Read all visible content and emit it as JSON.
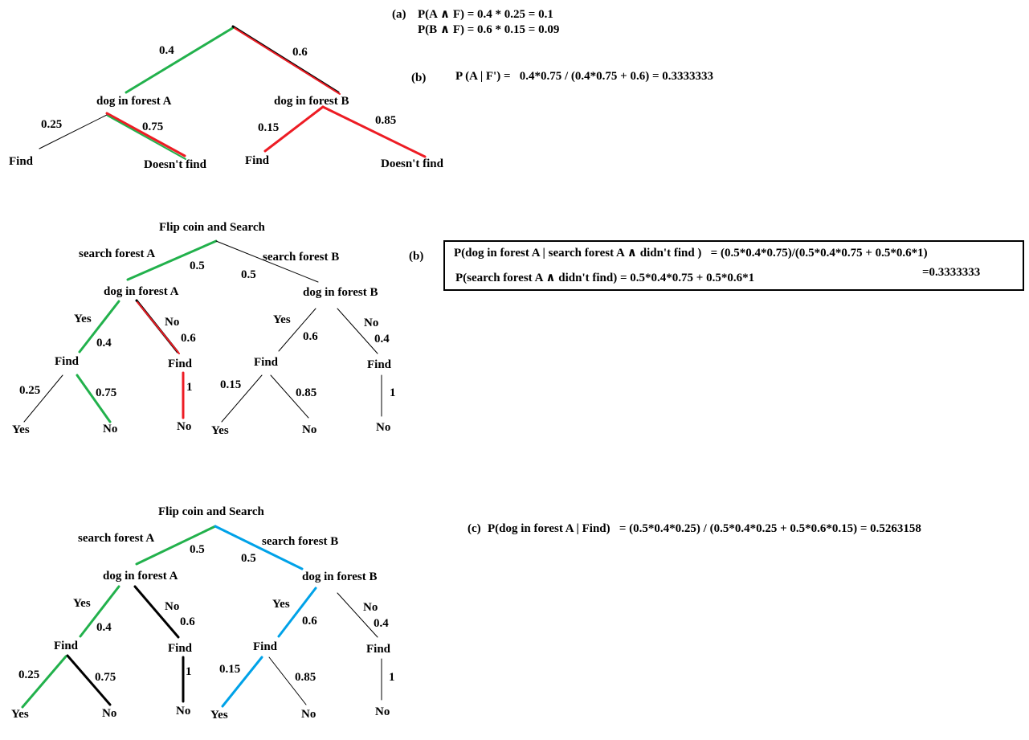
{
  "colors": {
    "green": "#22b14c",
    "red": "#ed1c24",
    "blue": "#00a2e8",
    "black": "#000000"
  },
  "formulas": {
    "a_label": "(a)",
    "a_line1": "P(A ∧ F) = 0.4 * 0.25 = 0.1",
    "a_line2": "P(B ∧ F) = 0.6 * 0.15 = 0.09",
    "b1_label": "(b)",
    "b1_text": "P (A | F') =   0.4*0.75 / (0.4*0.75 + 0.6) = 0.3333333",
    "b2_label": "(b)",
    "b2_line1": "P(dog in forest A | search forest A ∧ didn't find )   = (0.5*0.4*0.75)/(0.5*0.4*0.75 + 0.5*0.6*1)",
    "b2_result": "=0.3333333",
    "b2_line2": "P(search forest A ∧ didn't find) = 0.5*0.4*0.75 + 0.5*0.6*1",
    "c_label": "(c)",
    "c_text": "P(dog in forest A | Find)   = (0.5*0.4*0.25) / (0.5*0.4*0.25 + 0.5*0.6*0.15) = 0.5263158"
  },
  "tree1": {
    "p_a": "0.4",
    "p_b": "0.6",
    "node_a": "dog in forest A",
    "node_b": "dog in forest B",
    "a_find_p": "0.25",
    "a_notfind_p": "0.75",
    "a_find": "Find",
    "a_notfind": "Doesn't find",
    "b_find_p": "0.15",
    "b_notfind_p": "0.85",
    "b_find": "Find",
    "b_notfind": "Doesn't find"
  },
  "tree2": {
    "root": "Flip coin and Search",
    "search_a": "search forest A",
    "search_a_p": "0.5",
    "search_b": "search forest B",
    "search_b_p": "0.5",
    "node_a": "dog in forest A",
    "node_b": "dog in forest B",
    "a_yes": "Yes",
    "a_yes_p": "0.4",
    "a_no": "No",
    "a_no_p": "0.6",
    "a_yes_find": "Find",
    "a_no_find": "Find",
    "a_yes_find_yes_p": "0.25",
    "a_yes_find_no_p": "0.75",
    "a_yes_find_yes": "Yes",
    "a_yes_find_no": "No",
    "a_no_find_p": "1",
    "a_no_find_no": "No",
    "b_yes": "Yes",
    "b_yes_p": "0.6",
    "b_no": "No",
    "b_no_p": "0.4",
    "b_yes_find": "Find",
    "b_no_find": "Find",
    "b_yes_find_yes_p": "0.15",
    "b_yes_find_no_p": "0.85",
    "b_yes_find_yes": "Yes",
    "b_yes_find_no": "No",
    "b_no_find_p": "1",
    "b_no_find_no": "No"
  },
  "tree3": {
    "root": "Flip coin and Search",
    "search_a": "search forest A",
    "search_a_p": "0.5",
    "search_b": "search forest B",
    "search_b_p": "0.5",
    "node_a": "dog in forest A",
    "node_b": "dog in forest B",
    "a_yes": "Yes",
    "a_yes_p": "0.4",
    "a_no": "No",
    "a_no_p": "0.6",
    "a_yes_find": "Find",
    "a_no_find": "Find",
    "a_yes_find_yes_p": "0.25",
    "a_yes_find_no_p": "0.75",
    "a_yes_find_yes": "Yes",
    "a_yes_find_no": "No",
    "a_no_find_p": "1",
    "a_no_find_no": "No",
    "b_yes": "Yes",
    "b_yes_p": "0.6",
    "b_no": "No",
    "b_no_p": "0.4",
    "b_yes_find": "Find",
    "b_no_find": "Find",
    "b_yes_find_yes_p": "0.15",
    "b_yes_find_no_p": "0.85",
    "b_yes_find_yes": "Yes",
    "b_yes_find_no": "No",
    "b_no_find_p": "1",
    "b_no_find_no": "No"
  }
}
